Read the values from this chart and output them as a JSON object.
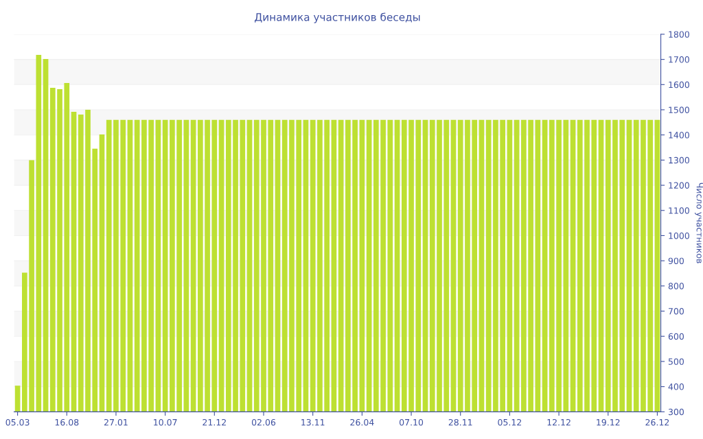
{
  "chart_data": {
    "type": "bar",
    "title": "Динамика участников беседы",
    "ylabel": "Число участников",
    "categories": [
      "05.03",
      null,
      null,
      null,
      null,
      null,
      null,
      "16.08",
      null,
      null,
      null,
      null,
      null,
      null,
      "27.01",
      null,
      null,
      null,
      null,
      null,
      null,
      "10.07",
      null,
      null,
      null,
      null,
      null,
      null,
      "21.12",
      null,
      null,
      null,
      null,
      null,
      null,
      "02.06",
      null,
      null,
      null,
      null,
      null,
      null,
      "13.11",
      null,
      null,
      null,
      null,
      null,
      null,
      "26.04",
      null,
      null,
      null,
      null,
      null,
      null,
      "07.10",
      null,
      null,
      null,
      null,
      null,
      null,
      "28.11",
      null,
      null,
      null,
      null,
      null,
      null,
      "05.12",
      null,
      null,
      null,
      null,
      null,
      null,
      "12.12",
      null,
      null,
      null,
      null,
      null,
      null,
      "19.12",
      null,
      null,
      null,
      null,
      null,
      null,
      "26.12"
    ],
    "values": [
      404,
      853,
      1300,
      1718,
      1702,
      1587,
      1582,
      1606,
      1492,
      1481,
      1500,
      1345,
      1402,
      1460,
      1460,
      1460,
      1460,
      1460,
      1460,
      1460,
      1460,
      1460,
      1460,
      1460,
      1460,
      1460,
      1460,
      1460,
      1460,
      1460,
      1460,
      1460,
      1460,
      1460,
      1460,
      1460,
      1460,
      1460,
      1460,
      1460,
      1460,
      1460,
      1460,
      1460,
      1460,
      1460,
      1460,
      1460,
      1460,
      1460,
      1460,
      1460,
      1460,
      1460,
      1460,
      1460,
      1460,
      1460,
      1460,
      1460,
      1460,
      1460,
      1460,
      1460,
      1460,
      1460,
      1460,
      1460,
      1460,
      1460,
      1460,
      1460,
      1460,
      1460,
      1460,
      1460,
      1460,
      1460,
      1460,
      1460,
      1460,
      1460,
      1460,
      1460,
      1460,
      1460,
      1460,
      1460,
      1460,
      1460,
      1460,
      1460
    ],
    "color": "#bde032",
    "ylim": [
      300,
      1800
    ],
    "yticks": [
      300,
      400,
      500,
      600,
      700,
      800,
      900,
      1000,
      1100,
      1200,
      1300,
      1400,
      1500,
      1600,
      1700,
      1800
    ],
    "grid": "y"
  }
}
